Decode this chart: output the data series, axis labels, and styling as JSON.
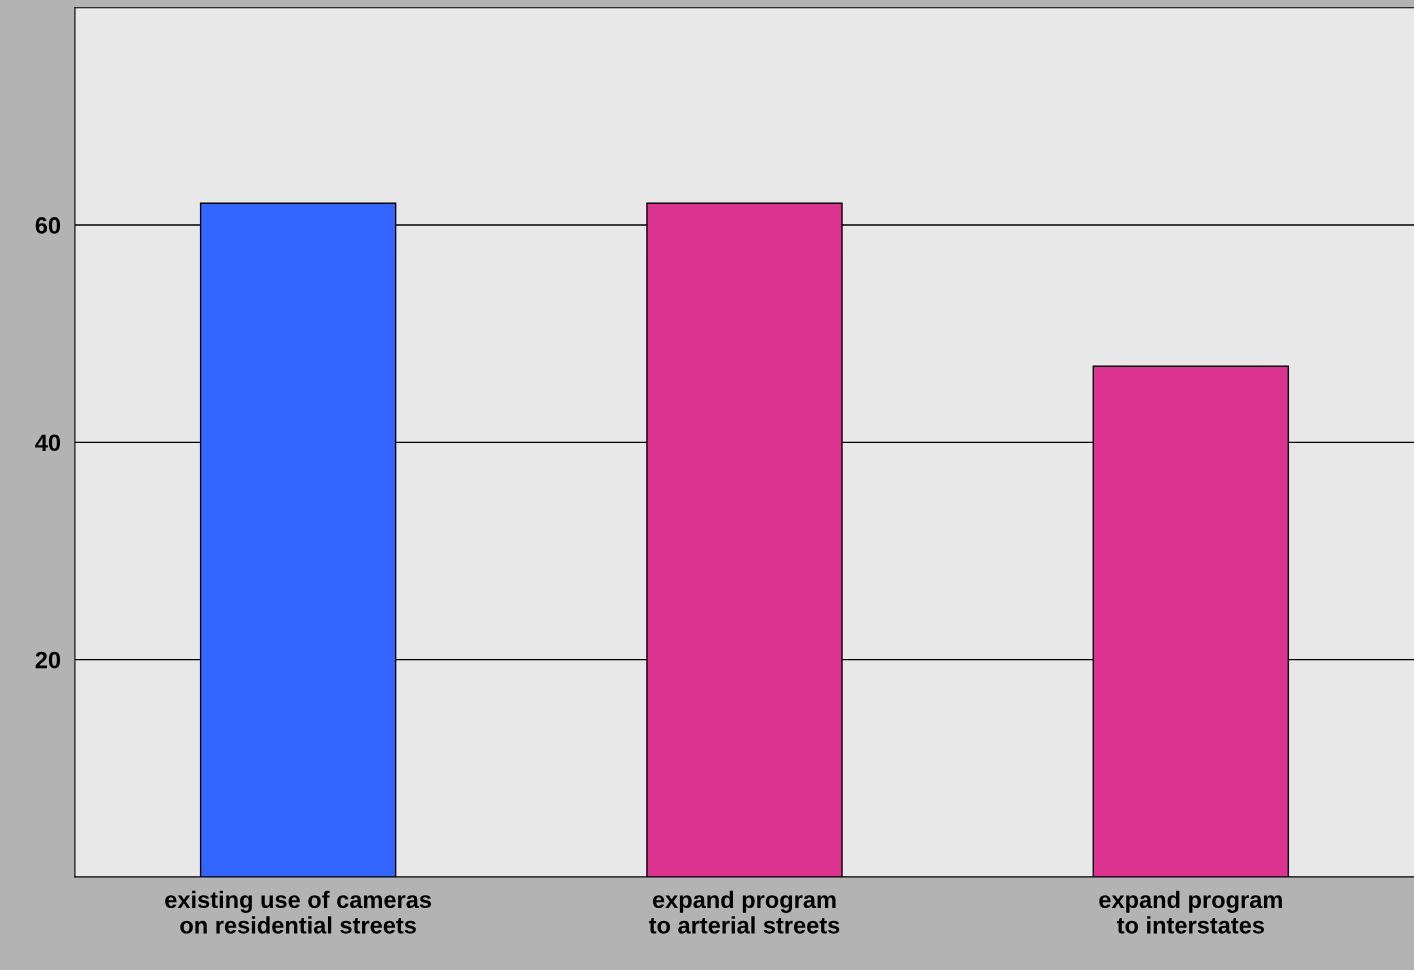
{
  "chart_data": {
    "type": "bar",
    "categories": [
      "existing use of cameras\non residential streets",
      "expand program\nto arterial streets",
      "expand program\nto interstates"
    ],
    "values": [
      62,
      62,
      47
    ],
    "colors": [
      "#3366ff",
      "#dc3290",
      "#dc3290"
    ],
    "ylim": [
      0,
      80
    ],
    "yticks": [
      20,
      40,
      60
    ],
    "grid": "y"
  }
}
